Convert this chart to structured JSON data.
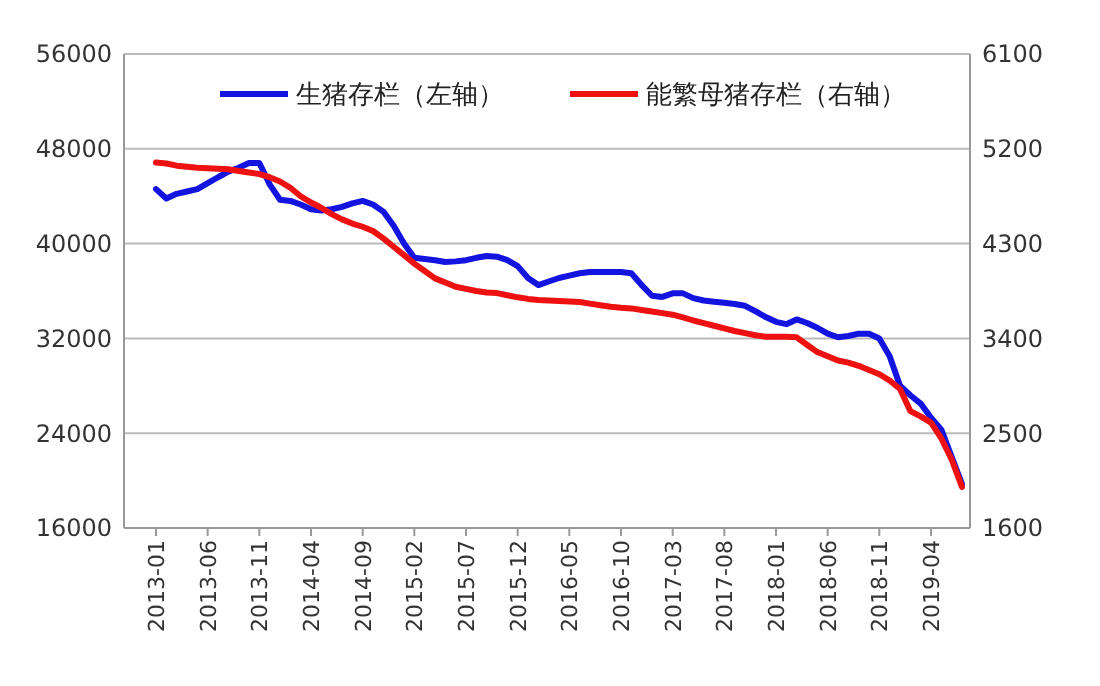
{
  "chart_data": {
    "type": "line",
    "categories": [
      "2013-01",
      null,
      null,
      null,
      null,
      "2013-06",
      null,
      null,
      null,
      null,
      "2013-11",
      null,
      null,
      null,
      null,
      "2014-04",
      null,
      null,
      null,
      null,
      "2014-09",
      null,
      null,
      null,
      null,
      "2015-02",
      null,
      null,
      null,
      null,
      "2015-07",
      null,
      null,
      null,
      null,
      "2015-12",
      null,
      null,
      null,
      null,
      "2016-05",
      null,
      null,
      null,
      null,
      "2016-10",
      null,
      null,
      null,
      null,
      "2017-03",
      null,
      null,
      null,
      null,
      "2017-08",
      null,
      null,
      null,
      null,
      "2018-01",
      null,
      null,
      null,
      null,
      "2018-06",
      null,
      null,
      null,
      null,
      "2018-11",
      null,
      null,
      null,
      null,
      "2019-04",
      null,
      null,
      null
    ],
    "series": [
      {
        "name": "生猪存栏（左轴）",
        "color": "#1414e0",
        "axis": "y",
        "values": [
          44600,
          43800,
          44200,
          44400,
          44600,
          45100,
          45600,
          46070,
          46400,
          46800,
          46800,
          45000,
          43700,
          43600,
          43300,
          42900,
          42800,
          42900,
          43100,
          43400,
          43600,
          43300,
          42700,
          41500,
          40000,
          38800,
          38700,
          38600,
          38450,
          38500,
          38600,
          38800,
          38950,
          38900,
          38600,
          38100,
          37100,
          36500,
          36800,
          37100,
          37300,
          37500,
          37600,
          37600,
          37600,
          37600,
          37500,
          36500,
          35600,
          35500,
          35800,
          35800,
          35400,
          35200,
          35100,
          35000,
          34900,
          34750,
          34300,
          33800,
          33400,
          33200,
          33600,
          33300,
          32900,
          32400,
          32100,
          32200,
          32400,
          32400,
          32000,
          30500,
          28000,
          27200,
          26500,
          25300,
          24300,
          22000,
          19700
        ]
      },
      {
        "name": "能繁母猪存栏（右轴）",
        "color": "#ee1111",
        "axis": "y2",
        "values": [
          5070,
          5060,
          5040,
          5030,
          5020,
          5015,
          5010,
          5005,
          4990,
          4975,
          4960,
          4930,
          4890,
          4830,
          4750,
          4690,
          4640,
          4580,
          4530,
          4490,
          4460,
          4420,
          4350,
          4270,
          4190,
          4110,
          4040,
          3970,
          3930,
          3890,
          3870,
          3850,
          3835,
          3830,
          3810,
          3790,
          3775,
          3765,
          3760,
          3755,
          3750,
          3745,
          3730,
          3715,
          3700,
          3690,
          3685,
          3670,
          3655,
          3640,
          3625,
          3600,
          3570,
          3545,
          3520,
          3495,
          3470,
          3450,
          3430,
          3415,
          3415,
          3415,
          3410,
          3340,
          3270,
          3230,
          3190,
          3170,
          3140,
          3100,
          3060,
          3000,
          2920,
          2710,
          2660,
          2600,
          2450,
          2250,
          1990
        ]
      }
    ],
    "ylim": [
      16000,
      56000
    ],
    "yticks": [
      16000,
      24000,
      32000,
      40000,
      48000,
      56000
    ],
    "y2lim": [
      1600,
      6100
    ],
    "y2ticks": [
      1600,
      2500,
      3400,
      4300,
      5200,
      6100
    ],
    "grid": "y",
    "legend": "top",
    "line_style": "solid",
    "marker": "none"
  }
}
